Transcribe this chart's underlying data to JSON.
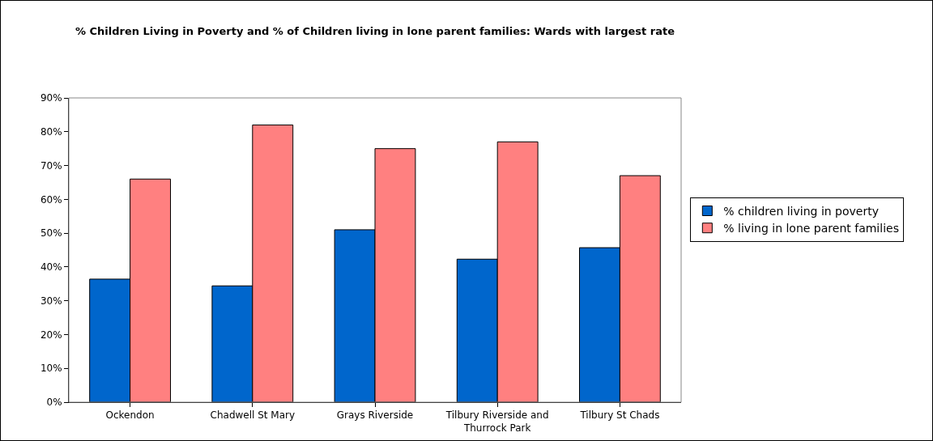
{
  "chart_data": {
    "type": "bar",
    "title": "% Children Living in Poverty and % of Children living in lone parent families: Wards with largest rate",
    "categories": [
      "Ockendon",
      "Chadwell St Mary",
      "Grays Riverside",
      "Tilbury Riverside and Thurrock Park",
      "Tilbury St Chads"
    ],
    "series": [
      {
        "name": "% children living in poverty",
        "color": "#0066cc",
        "values": [
          36.4,
          34.4,
          51,
          42.3,
          45.7
        ]
      },
      {
        "name": "% living in lone parent families",
        "color": "#ff8080",
        "values": [
          66,
          82,
          75,
          77,
          67
        ]
      }
    ],
    "ylim": [
      0,
      90
    ],
    "yticks": [
      {
        "value": 0,
        "label": "0%"
      },
      {
        "value": 10,
        "label": "10%"
      },
      {
        "value": 20,
        "label": "20%"
      },
      {
        "value": 30,
        "label": "30%"
      },
      {
        "value": 40,
        "label": "40%"
      },
      {
        "value": 50,
        "label": "50%"
      },
      {
        "value": 60,
        "label": "60%"
      },
      {
        "value": 70,
        "label": "70%"
      },
      {
        "value": 80,
        "label": "80%"
      },
      {
        "value": 90,
        "label": "90%"
      }
    ],
    "grid": false,
    "legend": "right"
  }
}
